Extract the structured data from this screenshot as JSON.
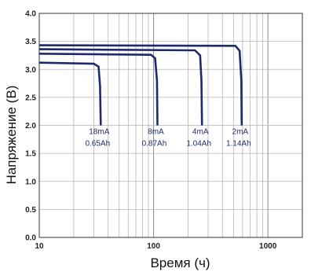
{
  "chart_data": {
    "type": "line",
    "xlabel": "Время (ч)",
    "ylabel": "Напряжение (В)",
    "xscale": "log",
    "xlim": [
      10,
      2000
    ],
    "ylim": [
      0.0,
      4.0
    ],
    "x_tick_labels": [
      "10",
      "100",
      "1000"
    ],
    "y_tick_labels": [
      "0.0",
      "0.5",
      "1.0",
      "1.5",
      "2.0",
      "2.5",
      "3.0",
      "3.5",
      "4.0"
    ],
    "grid": true,
    "line_color": "#1e2a6b",
    "series": [
      {
        "label_current": "18mA",
        "label_capacity": "0.65Ah",
        "points": [
          [
            10,
            3.12
          ],
          [
            30,
            3.1
          ],
          [
            33,
            3.05
          ],
          [
            34,
            2.7
          ],
          [
            34.5,
            2.0
          ]
        ]
      },
      {
        "label_current": "8mA",
        "label_capacity": "0.87Ah",
        "points": [
          [
            10,
            3.28
          ],
          [
            95,
            3.26
          ],
          [
            103,
            3.2
          ],
          [
            107,
            2.8
          ],
          [
            108,
            2.0
          ]
        ]
      },
      {
        "label_current": "4mA",
        "label_capacity": "1.04Ah",
        "points": [
          [
            10,
            3.36
          ],
          [
            230,
            3.34
          ],
          [
            255,
            3.25
          ],
          [
            262,
            2.8
          ],
          [
            265,
            2.0
          ]
        ]
      },
      {
        "label_current": "2mA",
        "label_capacity": "1.14Ah",
        "points": [
          [
            10,
            3.43
          ],
          [
            520,
            3.42
          ],
          [
            565,
            3.33
          ],
          [
            585,
            2.8
          ],
          [
            590,
            2.0
          ]
        ]
      }
    ]
  }
}
